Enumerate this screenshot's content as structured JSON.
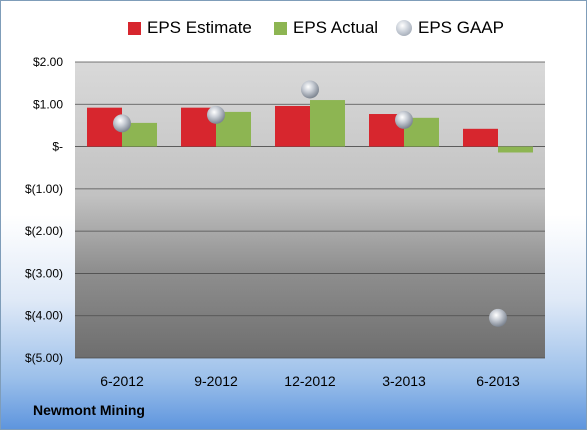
{
  "chart_data": {
    "type": "bar",
    "categories": [
      "6-2012",
      "9-2012",
      "12-2012",
      "3-2013",
      "6-2013"
    ],
    "series": [
      {
        "name": "EPS Estimate",
        "kind": "bar",
        "color": "#d7262e",
        "values": [
          0.92,
          0.92,
          0.96,
          0.77,
          0.42
        ]
      },
      {
        "name": "EPS Actual",
        "kind": "bar",
        "color": "#8db552",
        "values": [
          0.56,
          0.82,
          1.1,
          0.68,
          -0.14
        ]
      },
      {
        "name": "EPS GAAP",
        "kind": "marker",
        "color": "#b9c0ca",
        "values": [
          0.55,
          0.75,
          1.35,
          0.63,
          -4.05
        ]
      }
    ],
    "yticks": [
      2,
      1,
      0,
      -1,
      -2,
      -3,
      -4,
      -5
    ],
    "ytick_labels": [
      "$2.00",
      "$1.00",
      "$-",
      "$(1.00)",
      "$(2.00)",
      "$(3.00)",
      "$(4.00)",
      "$(5.00)"
    ],
    "ylim": [
      -5,
      2
    ],
    "grid": true,
    "legend_position": "top"
  },
  "footer": {
    "company": "Newmont Mining"
  }
}
